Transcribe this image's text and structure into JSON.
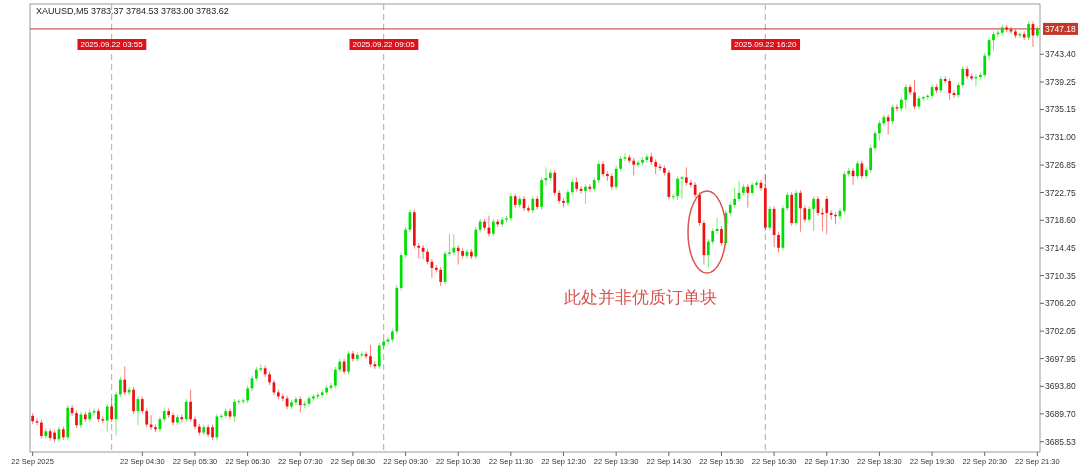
{
  "chart_data": {
    "type": "candlestick",
    "title": "XAUUSD,M5  3783.37 3784.53 3783.00 3783.62",
    "xlim": [
      "2025-09-22T02:22",
      "2025-09-22T21:33"
    ],
    "ylim": [
      3684.0,
      3750.9
    ],
    "xticks": [
      {
        "value": "2025-09-22T02:25",
        "label": "22 Sep 2025"
      },
      {
        "value": "2025-09-22T04:30",
        "label": "22 Sep 04:30"
      },
      {
        "value": "2025-09-22T05:30",
        "label": "22 Sep 05:30"
      },
      {
        "value": "2025-09-22T06:30",
        "label": "22 Sep 06:30"
      },
      {
        "value": "2025-09-22T07:30",
        "label": "22 Sep 07:30"
      },
      {
        "value": "2025-09-22T08:30",
        "label": "22 Sep 08:30"
      },
      {
        "value": "2025-09-22T09:30",
        "label": "22 Sep 09:30"
      },
      {
        "value": "2025-09-22T10:30",
        "label": "22 Sep 10:30"
      },
      {
        "value": "2025-09-22T11:30",
        "label": "22 Sep 11:30"
      },
      {
        "value": "2025-09-22T12:30",
        "label": "22 Sep 12:30"
      },
      {
        "value": "2025-09-22T13:30",
        "label": "22 Sep 13:30"
      },
      {
        "value": "2025-09-22T14:30",
        "label": "22 Sep 14:30"
      },
      {
        "value": "2025-09-22T15:30",
        "label": "22 Sep 15:30"
      },
      {
        "value": "2025-09-22T16:30",
        "label": "22 Sep 16:30"
      },
      {
        "value": "2025-09-22T17:30",
        "label": "22 Sep 17:30"
      },
      {
        "value": "2025-09-22T18:30",
        "label": "22 Sep 18:30"
      },
      {
        "value": "2025-09-22T19:30",
        "label": "22 Sep 19:30"
      },
      {
        "value": "2025-09-22T20:30",
        "label": "22 Sep 20:30"
      },
      {
        "value": "2025-09-22T21:30",
        "label": "22 Sep 21:30"
      }
    ],
    "yticks": [
      {
        "value": 3685.53,
        "label": "3685.53"
      },
      {
        "value": 3689.7,
        "label": "3689.70"
      },
      {
        "value": 3693.8,
        "label": "3693.80"
      },
      {
        "value": 3697.95,
        "label": "3697.95"
      },
      {
        "value": 3702.05,
        "label": "3702.05"
      },
      {
        "value": 3706.2,
        "label": "3706.20"
      },
      {
        "value": 3710.35,
        "label": "3710.35"
      },
      {
        "value": 3714.45,
        "label": "3714.45"
      },
      {
        "value": 3718.6,
        "label": "3718.60"
      },
      {
        "value": 3722.75,
        "label": "3722.75"
      },
      {
        "value": 3726.85,
        "label": "3726.85"
      },
      {
        "value": 3731.0,
        "label": "3731.00"
      },
      {
        "value": 3735.15,
        "label": "3735.15"
      },
      {
        "value": 3739.25,
        "label": "3739.25"
      },
      {
        "value": 3743.4,
        "label": "3743.40"
      }
    ],
    "ref_lines": [
      {
        "axis": "x",
        "value": "2025-09-22T03:55",
        "label": "2025.09.22 03:55",
        "color": "#dba7b0",
        "line_style": "dashed"
      },
      {
        "axis": "x",
        "value": "2025-09-22T09:05",
        "label": "2025.09.22 09:05",
        "color": "#dba7b0",
        "line_style": "dashed"
      },
      {
        "axis": "x",
        "value": "2025-09-22T16:20",
        "label": "2025.09.22 16:20",
        "color": "#dba7b0",
        "line_style": "dashed"
      },
      {
        "axis": "y",
        "value": 3747.18,
        "label": "3747.18",
        "color": "#c0392b",
        "line_style": "solid"
      }
    ],
    "annotations": [
      "此处并非优质订单块"
    ],
    "x": [
      "2025-09-22T02:25",
      "2025-09-22T02:30",
      "2025-09-22T02:35",
      "2025-09-22T02:40",
      "2025-09-22T02:45",
      "2025-09-22T02:50",
      "2025-09-22T02:55",
      "2025-09-22T03:00",
      "2025-09-22T03:05",
      "2025-09-22T03:10",
      "2025-09-22T03:15",
      "2025-09-22T03:20",
      "2025-09-22T03:25",
      "2025-09-22T03:30",
      "2025-09-22T03:35",
      "2025-09-22T03:40",
      "2025-09-22T03:45",
      "2025-09-22T03:50",
      "2025-09-22T03:55",
      "2025-09-22T04:00",
      "2025-09-22T04:05",
      "2025-09-22T04:10",
      "2025-09-22T04:15",
      "2025-09-22T04:20",
      "2025-09-22T04:25",
      "2025-09-22T04:30",
      "2025-09-22T04:35",
      "2025-09-22T04:40",
      "2025-09-22T04:45",
      "2025-09-22T04:50",
      "2025-09-22T04:55",
      "2025-09-22T05:00",
      "2025-09-22T05:05",
      "2025-09-22T05:10",
      "2025-09-22T05:15",
      "2025-09-22T05:20",
      "2025-09-22T05:25",
      "2025-09-22T05:30",
      "2025-09-22T05:35",
      "2025-09-22T05:40",
      "2025-09-22T05:45",
      "2025-09-22T05:50",
      "2025-09-22T05:55",
      "2025-09-22T06:00",
      "2025-09-22T06:05",
      "2025-09-22T06:10",
      "2025-09-22T06:15",
      "2025-09-22T06:20",
      "2025-09-22T06:25",
      "2025-09-22T06:30",
      "2025-09-22T06:35",
      "2025-09-22T06:40",
      "2025-09-22T06:45",
      "2025-09-22T06:50",
      "2025-09-22T06:55",
      "2025-09-22T07:00",
      "2025-09-22T07:05",
      "2025-09-22T07:10",
      "2025-09-22T07:15",
      "2025-09-22T07:20",
      "2025-09-22T07:25",
      "2025-09-22T07:30",
      "2025-09-22T07:35",
      "2025-09-22T07:40",
      "2025-09-22T07:45",
      "2025-09-22T07:50",
      "2025-09-22T07:55",
      "2025-09-22T08:00",
      "2025-09-22T08:05",
      "2025-09-22T08:10",
      "2025-09-22T08:15",
      "2025-09-22T08:20",
      "2025-09-22T08:25",
      "2025-09-22T08:30",
      "2025-09-22T08:35",
      "2025-09-22T08:40",
      "2025-09-22T08:45",
      "2025-09-22T08:50",
      "2025-09-22T08:55",
      "2025-09-22T09:00",
      "2025-09-22T09:05",
      "2025-09-22T09:10",
      "2025-09-22T09:15",
      "2025-09-22T09:20",
      "2025-09-22T09:25",
      "2025-09-22T09:30",
      "2025-09-22T09:35",
      "2025-09-22T09:40",
      "2025-09-22T09:45",
      "2025-09-22T09:50",
      "2025-09-22T09:55",
      "2025-09-22T10:00",
      "2025-09-22T10:05",
      "2025-09-22T10:10",
      "2025-09-22T10:15",
      "2025-09-22T10:20",
      "2025-09-22T10:25",
      "2025-09-22T10:30",
      "2025-09-22T10:35",
      "2025-09-22T10:40",
      "2025-09-22T10:45",
      "2025-09-22T10:50",
      "2025-09-22T10:55",
      "2025-09-22T11:00",
      "2025-09-22T11:05",
      "2025-09-22T11:10",
      "2025-09-22T11:15",
      "2025-09-22T11:20",
      "2025-09-22T11:25",
      "2025-09-22T11:30",
      "2025-09-22T11:35",
      "2025-09-22T11:40",
      "2025-09-22T11:45",
      "2025-09-22T11:50",
      "2025-09-22T11:55",
      "2025-09-22T12:00",
      "2025-09-22T12:05",
      "2025-09-22T12:10",
      "2025-09-22T12:15",
      "2025-09-22T12:20",
      "2025-09-22T12:25",
      "2025-09-22T12:30",
      "2025-09-22T12:35",
      "2025-09-22T12:40",
      "2025-09-22T12:45",
      "2025-09-22T12:50",
      "2025-09-22T12:55",
      "2025-09-22T13:00",
      "2025-09-22T13:05",
      "2025-09-22T13:10",
      "2025-09-22T13:15",
      "2025-09-22T13:20",
      "2025-09-22T13:25",
      "2025-09-22T13:30",
      "2025-09-22T13:35",
      "2025-09-22T13:40",
      "2025-09-22T13:45",
      "2025-09-22T13:50",
      "2025-09-22T13:55",
      "2025-09-22T14:00",
      "2025-09-22T14:05",
      "2025-09-22T14:10",
      "2025-09-22T14:15",
      "2025-09-22T14:20",
      "2025-09-22T14:25",
      "2025-09-22T14:30",
      "2025-09-22T14:35",
      "2025-09-22T14:40",
      "2025-09-22T14:45",
      "2025-09-22T14:50",
      "2025-09-22T14:55",
      "2025-09-22T15:00",
      "2025-09-22T15:05",
      "2025-09-22T15:10",
      "2025-09-22T15:15",
      "2025-09-22T15:20",
      "2025-09-22T15:25",
      "2025-09-22T15:30",
      "2025-09-22T15:35",
      "2025-09-22T15:40",
      "2025-09-22T15:45",
      "2025-09-22T15:50",
      "2025-09-22T15:55",
      "2025-09-22T16:00",
      "2025-09-22T16:05",
      "2025-09-22T16:10",
      "2025-09-22T16:15",
      "2025-09-22T16:20",
      "2025-09-22T16:25",
      "2025-09-22T16:30",
      "2025-09-22T16:35",
      "2025-09-22T16:40",
      "2025-09-22T16:45",
      "2025-09-22T16:50",
      "2025-09-22T16:55",
      "2025-09-22T17:00",
      "2025-09-22T17:05",
      "2025-09-22T17:10",
      "2025-09-22T17:15",
      "2025-09-22T17:20",
      "2025-09-22T17:25",
      "2025-09-22T17:30",
      "2025-09-22T17:35",
      "2025-09-22T17:40",
      "2025-09-22T17:45",
      "2025-09-22T17:50",
      "2025-09-22T17:55",
      "2025-09-22T18:00",
      "2025-09-22T18:05",
      "2025-09-22T18:10",
      "2025-09-22T18:15",
      "2025-09-22T18:20",
      "2025-09-22T18:25",
      "2025-09-22T18:30",
      "2025-09-22T18:35",
      "2025-09-22T18:40",
      "2025-09-22T18:45",
      "2025-09-22T18:50",
      "2025-09-22T18:55",
      "2025-09-22T19:00",
      "2025-09-22T19:05",
      "2025-09-22T19:10",
      "2025-09-22T19:15",
      "2025-09-22T19:20",
      "2025-09-22T19:25",
      "2025-09-22T19:30",
      "2025-09-22T19:35",
      "2025-09-22T19:40",
      "2025-09-22T19:45",
      "2025-09-22T19:50",
      "2025-09-22T19:55",
      "2025-09-22T20:00",
      "2025-09-22T20:05",
      "2025-09-22T20:10",
      "2025-09-22T20:15",
      "2025-09-22T20:20",
      "2025-09-22T20:25",
      "2025-09-22T20:30",
      "2025-09-22T20:35",
      "2025-09-22T20:40",
      "2025-09-22T20:45",
      "2025-09-22T20:50",
      "2025-09-22T20:55",
      "2025-09-22T21:00",
      "2025-09-22T21:05",
      "2025-09-22T21:10",
      "2025-09-22T21:15",
      "2025-09-22T21:20",
      "2025-09-22T21:25",
      "2025-09-22T21:30"
    ],
    "ohlc": [
      [
        3689.4,
        3689.8,
        3688.2,
        3688.6
      ],
      [
        3688.6,
        3689.0,
        3688.0,
        3688.4
      ],
      [
        3688.4,
        3688.8,
        3686.0,
        3686.4
      ],
      [
        3686.4,
        3687.5,
        3686.0,
        3687.1
      ],
      [
        3687.1,
        3687.5,
        3685.7,
        3686.1
      ],
      [
        3686.9,
        3687.3,
        3685.5,
        3685.9
      ],
      [
        3685.9,
        3687.8,
        3685.5,
        3687.4
      ],
      [
        3687.4,
        3687.8,
        3685.8,
        3686.2
      ],
      [
        3686.2,
        3691.0,
        3685.8,
        3690.6
      ],
      [
        3690.6,
        3691.0,
        3689.4,
        3689.8
      ],
      [
        3689.8,
        3690.2,
        3687.6,
        3688.0
      ],
      [
        3688.0,
        3690.0,
        3687.6,
        3689.6
      ],
      [
        3689.6,
        3690.0,
        3688.5,
        3688.9
      ],
      [
        3688.9,
        3690.3,
        3688.5,
        3689.9
      ],
      [
        3689.9,
        3690.5,
        3689.5,
        3690.1
      ],
      [
        3690.1,
        3690.5,
        3688.5,
        3688.9
      ],
      [
        3688.9,
        3689.3,
        3688.3,
        3688.7
      ],
      [
        3688.7,
        3691.2,
        3687.0,
        3690.8
      ],
      [
        3690.8,
        3692.0,
        3688.5,
        3688.9
      ],
      [
        3688.9,
        3693.0,
        3686.5,
        3692.6
      ],
      [
        3692.6,
        3695.2,
        3692.2,
        3694.8
      ],
      [
        3694.8,
        3696.8,
        3692.5,
        3692.9
      ],
      [
        3692.9,
        3693.7,
        3692.5,
        3693.3
      ],
      [
        3693.3,
        3693.7,
        3689.7,
        3690.1
      ],
      [
        3690.1,
        3692.3,
        3688.0,
        3691.9
      ],
      [
        3691.9,
        3692.3,
        3689.7,
        3690.1
      ],
      [
        3690.1,
        3690.5,
        3687.7,
        3688.1
      ],
      [
        3688.1,
        3689.5,
        3687.3,
        3687.7
      ],
      [
        3687.7,
        3688.1,
        3687.0,
        3687.4
      ],
      [
        3687.4,
        3689.3,
        3687.0,
        3688.9
      ],
      [
        3688.9,
        3690.5,
        3688.5,
        3690.1
      ],
      [
        3690.1,
        3690.5,
        3689.1,
        3689.5
      ],
      [
        3689.5,
        3689.9,
        3688.0,
        3688.4
      ],
      [
        3688.4,
        3689.6,
        3688.0,
        3689.2
      ],
      [
        3689.2,
        3689.6,
        3688.5,
        3688.9
      ],
      [
        3688.9,
        3691.9,
        3688.5,
        3691.5
      ],
      [
        3691.5,
        3693.3,
        3688.5,
        3688.9
      ],
      [
        3688.9,
        3689.3,
        3687.4,
        3687.8
      ],
      [
        3687.8,
        3688.2,
        3686.5,
        3686.9
      ],
      [
        3686.9,
        3688.1,
        3686.5,
        3687.7
      ],
      [
        3687.7,
        3688.1,
        3686.2,
        3686.6
      ],
      [
        3687.7,
        3688.1,
        3685.8,
        3686.2
      ],
      [
        3686.2,
        3689.7,
        3685.8,
        3689.3
      ],
      [
        3689.3,
        3689.7,
        3688.9,
        3689.4
      ],
      [
        3689.4,
        3690.5,
        3689.0,
        3690.1
      ],
      [
        3690.1,
        3690.5,
        3688.9,
        3689.3
      ],
      [
        3689.3,
        3691.9,
        3688.5,
        3691.5
      ],
      [
        3691.5,
        3691.9,
        3691.1,
        3691.6
      ],
      [
        3691.6,
        3692.0,
        3691.2,
        3691.7
      ],
      [
        3691.7,
        3693.9,
        3691.3,
        3693.5
      ],
      [
        3693.5,
        3695.4,
        3693.1,
        3695.0
      ],
      [
        3695.0,
        3696.7,
        3694.6,
        3696.3
      ],
      [
        3696.3,
        3697.1,
        3695.9,
        3696.5
      ],
      [
        3696.5,
        3696.9,
        3695.2,
        3695.6
      ],
      [
        3695.6,
        3696.0,
        3694.0,
        3694.4
      ],
      [
        3694.4,
        3694.8,
        3692.5,
        3692.9
      ],
      [
        3692.9,
        3693.3,
        3691.9,
        3692.3
      ],
      [
        3692.3,
        3692.7,
        3691.6,
        3692.0
      ],
      [
        3692.0,
        3692.4,
        3690.4,
        3690.8
      ],
      [
        3690.8,
        3691.8,
        3690.4,
        3691.4
      ],
      [
        3691.4,
        3692.3,
        3691.0,
        3691.9
      ],
      [
        3691.9,
        3692.3,
        3689.9,
        3691.0
      ],
      [
        3691.0,
        3691.6,
        3690.6,
        3691.2
      ],
      [
        3691.2,
        3692.4,
        3690.8,
        3692.0
      ],
      [
        3692.0,
        3692.6,
        3691.6,
        3692.3
      ],
      [
        3692.3,
        3692.9,
        3691.9,
        3692.5
      ],
      [
        3692.5,
        3693.3,
        3692.1,
        3692.9
      ],
      [
        3692.9,
        3694.0,
        3692.5,
        3693.6
      ],
      [
        3693.6,
        3694.3,
        3693.2,
        3693.9
      ],
      [
        3693.9,
        3696.7,
        3693.5,
        3696.3
      ],
      [
        3696.3,
        3697.9,
        3695.9,
        3697.5
      ],
      [
        3697.5,
        3697.9,
        3695.6,
        3696.0
      ],
      [
        3696.0,
        3699.1,
        3695.6,
        3698.7
      ],
      [
        3698.7,
        3699.1,
        3697.5,
        3697.9
      ],
      [
        3697.9,
        3698.9,
        3697.5,
        3698.5
      ],
      [
        3698.5,
        3699.0,
        3698.1,
        3698.6
      ],
      [
        3698.6,
        3699.0,
        3697.9,
        3698.3
      ],
      [
        3698.3,
        3700.0,
        3696.7,
        3697.1
      ],
      [
        3697.1,
        3697.5,
        3696.4,
        3696.8
      ],
      [
        3696.8,
        3700.3,
        3696.4,
        3699.9
      ],
      [
        3699.9,
        3700.9,
        3699.5,
        3700.5
      ],
      [
        3700.5,
        3701.1,
        3700.1,
        3700.8
      ],
      [
        3700.8,
        3702.4,
        3700.4,
        3702.0
      ],
      [
        3702.0,
        3708.9,
        3701.6,
        3708.5
      ],
      [
        3708.5,
        3713.8,
        3708.1,
        3713.4
      ],
      [
        3713.4,
        3717.6,
        3713.0,
        3717.2
      ],
      [
        3717.2,
        3720.2,
        3716.8,
        3719.8
      ],
      [
        3719.8,
        3720.2,
        3714.4,
        3714.8
      ],
      [
        3714.8,
        3715.2,
        3712.9,
        3714.5
      ],
      [
        3714.5,
        3714.9,
        3712.8,
        3713.9
      ],
      [
        3713.9,
        3714.3,
        3712.0,
        3712.4
      ],
      [
        3712.4,
        3712.8,
        3710.0,
        3711.5
      ],
      [
        3711.5,
        3711.9,
        3710.8,
        3711.2
      ],
      [
        3711.2,
        3711.6,
        3708.8,
        3709.4
      ],
      [
        3709.4,
        3714.0,
        3709.0,
        3713.6
      ],
      [
        3713.6,
        3716.6,
        3713.2,
        3713.8
      ],
      [
        3713.8,
        3716.5,
        3713.4,
        3714.5
      ],
      [
        3714.5,
        3714.9,
        3712.0,
        3714.0
      ],
      [
        3714.0,
        3714.4,
        3712.9,
        3713.3
      ],
      [
        3713.3,
        3714.3,
        3712.9,
        3713.9
      ],
      [
        3713.9,
        3714.3,
        3712.8,
        3713.2
      ],
      [
        3713.2,
        3717.6,
        3712.8,
        3717.2
      ],
      [
        3717.2,
        3718.8,
        3716.8,
        3718.4
      ],
      [
        3718.4,
        3718.8,
        3717.1,
        3717.5
      ],
      [
        3717.5,
        3719.3,
        3716.2,
        3716.6
      ],
      [
        3716.6,
        3718.8,
        3716.2,
        3718.4
      ],
      [
        3718.4,
        3718.8,
        3717.6,
        3718.0
      ],
      [
        3718.0,
        3719.1,
        3717.6,
        3718.7
      ],
      [
        3718.7,
        3719.3,
        3718.3,
        3718.9
      ],
      [
        3718.9,
        3722.6,
        3718.5,
        3722.2
      ],
      [
        3722.2,
        3722.6,
        3720.5,
        3720.9
      ],
      [
        3720.9,
        3722.2,
        3720.5,
        3721.8
      ],
      [
        3721.8,
        3722.2,
        3720.0,
        3720.4
      ],
      [
        3720.4,
        3720.8,
        3719.8,
        3720.1
      ],
      [
        3720.1,
        3722.2,
        3719.7,
        3721.8
      ],
      [
        3721.8,
        3722.2,
        3720.2,
        3720.6
      ],
      [
        3720.6,
        3725.0,
        3720.2,
        3724.6
      ],
      [
        3724.6,
        3726.5,
        3723.8,
        3724.9
      ],
      [
        3724.9,
        3726.1,
        3724.5,
        3725.7
      ],
      [
        3725.7,
        3726.1,
        3722.3,
        3722.7
      ],
      [
        3722.7,
        3723.1,
        3721.1,
        3721.5
      ],
      [
        3721.5,
        3721.9,
        3720.5,
        3721.2
      ],
      [
        3721.2,
        3723.2,
        3720.8,
        3722.8
      ],
      [
        3722.8,
        3724.7,
        3722.4,
        3724.3
      ],
      [
        3724.3,
        3725.0,
        3722.9,
        3723.3
      ],
      [
        3723.3,
        3723.7,
        3722.6,
        3723.0
      ],
      [
        3723.0,
        3724.0,
        3721.0,
        3723.6
      ],
      [
        3723.6,
        3724.0,
        3722.9,
        3723.3
      ],
      [
        3723.3,
        3725.0,
        3722.9,
        3724.6
      ],
      [
        3724.6,
        3727.4,
        3724.2,
        3727.0
      ],
      [
        3727.0,
        3727.4,
        3725.1,
        3725.5
      ],
      [
        3725.5,
        3725.9,
        3724.5,
        3725.2
      ],
      [
        3725.2,
        3725.6,
        3723.2,
        3723.6
      ],
      [
        3723.6,
        3726.7,
        3723.2,
        3726.3
      ],
      [
        3726.3,
        3728.2,
        3725.9,
        3727.8
      ],
      [
        3727.8,
        3728.6,
        3727.4,
        3728.0
      ],
      [
        3728.0,
        3728.4,
        3727.1,
        3727.5
      ],
      [
        3727.5,
        3727.9,
        3725.3,
        3726.9
      ],
      [
        3726.9,
        3727.6,
        3726.5,
        3727.2
      ],
      [
        3727.2,
        3728.0,
        3726.8,
        3727.6
      ],
      [
        3727.6,
        3728.5,
        3727.2,
        3728.1
      ],
      [
        3728.1,
        3728.7,
        3726.9,
        3727.3
      ],
      [
        3727.3,
        3727.7,
        3725.5,
        3726.6
      ],
      [
        3726.6,
        3727.0,
        3726.0,
        3726.4
      ],
      [
        3726.4,
        3726.8,
        3725.3,
        3725.7
      ],
      [
        3725.7,
        3726.1,
        3721.7,
        3722.1
      ],
      [
        3722.1,
        3722.5,
        3721.7,
        3722.2
      ],
      [
        3722.2,
        3725.2,
        3721.6,
        3724.8
      ],
      [
        3724.8,
        3725.2,
        3721.8,
        3725.0
      ],
      [
        3725.0,
        3726.5,
        3723.8,
        3724.2
      ],
      [
        3724.2,
        3724.6,
        3723.5,
        3723.9
      ],
      [
        3723.9,
        3724.3,
        3722.0,
        3722.4
      ],
      [
        3722.4,
        3722.8,
        3717.8,
        3718.2
      ],
      [
        3718.2,
        3718.6,
        3712.0,
        3713.4
      ],
      [
        3713.4,
        3715.8,
        3711.5,
        3715.4
      ],
      [
        3715.4,
        3717.4,
        3715.0,
        3717.0
      ],
      [
        3717.0,
        3719.0,
        3716.6,
        3717.3
      ],
      [
        3717.3,
        3717.7,
        3714.8,
        3715.2
      ],
      [
        3715.2,
        3720.1,
        3714.8,
        3719.7
      ],
      [
        3719.7,
        3721.3,
        3719.3,
        3720.9
      ],
      [
        3720.9,
        3723.5,
        3720.5,
        3721.8
      ],
      [
        3721.8,
        3724.5,
        3721.4,
        3722.7
      ],
      [
        3722.7,
        3724.0,
        3722.3,
        3723.6
      ],
      [
        3723.6,
        3724.0,
        3720.5,
        3722.7
      ],
      [
        3722.7,
        3724.3,
        3722.3,
        3723.9
      ],
      [
        3723.9,
        3724.5,
        3723.5,
        3724.2
      ],
      [
        3724.2,
        3724.6,
        3723.0,
        3723.4
      ],
      [
        3723.4,
        3725.5,
        3717.1,
        3717.5
      ],
      [
        3717.5,
        3720.7,
        3717.1,
        3720.3
      ],
      [
        3720.3,
        3720.7,
        3714.6,
        3716.4
      ],
      [
        3716.4,
        3716.8,
        3713.8,
        3714.5
      ],
      [
        3714.5,
        3720.8,
        3714.1,
        3720.4
      ],
      [
        3720.4,
        3722.8,
        3720.0,
        3722.4
      ],
      [
        3722.4,
        3722.8,
        3717.8,
        3718.2
      ],
      [
        3718.2,
        3723.1,
        3717.8,
        3722.7
      ],
      [
        3722.7,
        3723.1,
        3716.9,
        3720.4
      ],
      [
        3720.4,
        3720.8,
        3718.3,
        3718.7
      ],
      [
        3718.7,
        3720.7,
        3718.3,
        3720.3
      ],
      [
        3720.3,
        3722.2,
        3717.0,
        3721.8
      ],
      [
        3721.8,
        3722.2,
        3719.3,
        3719.7
      ],
      [
        3719.7,
        3720.5,
        3717.0,
        3719.5
      ],
      [
        3721.8,
        3722.2,
        3716.5,
        3719.7
      ],
      [
        3719.7,
        3720.1,
        3718.7,
        3719.4
      ],
      [
        3719.4,
        3719.8,
        3718.0,
        3719.2
      ],
      [
        3719.2,
        3720.4,
        3718.8,
        3720.0
      ],
      [
        3720.0,
        3725.9,
        3719.6,
        3725.5
      ],
      [
        3725.5,
        3726.4,
        3725.1,
        3726.0
      ],
      [
        3726.0,
        3726.4,
        3723.9,
        3725.2
      ],
      [
        3725.2,
        3727.5,
        3724.8,
        3727.1
      ],
      [
        3727.1,
        3727.5,
        3724.8,
        3725.2
      ],
      [
        3725.2,
        3726.5,
        3724.8,
        3726.1
      ],
      [
        3726.1,
        3729.8,
        3725.7,
        3729.4
      ],
      [
        3729.4,
        3732.0,
        3729.0,
        3731.6
      ],
      [
        3731.6,
        3733.5,
        3730.5,
        3733.1
      ],
      [
        3733.1,
        3734.4,
        3732.7,
        3734.0
      ],
      [
        3734.0,
        3734.4,
        3731.4,
        3733.4
      ],
      [
        3733.4,
        3735.9,
        3733.0,
        3735.5
      ],
      [
        3735.5,
        3735.9,
        3734.9,
        3735.3
      ],
      [
        3735.3,
        3737.0,
        3734.9,
        3736.6
      ],
      [
        3736.6,
        3738.9,
        3735.2,
        3738.5
      ],
      [
        3738.5,
        3738.9,
        3737.3,
        3737.7
      ],
      [
        3737.7,
        3739.5,
        3735.2,
        3735.6
      ],
      [
        3735.6,
        3737.2,
        3735.2,
        3736.8
      ],
      [
        3736.8,
        3737.2,
        3736.4,
        3737.0
      ],
      [
        3737.0,
        3737.4,
        3736.6,
        3737.2
      ],
      [
        3737.2,
        3738.9,
        3736.8,
        3738.5
      ],
      [
        3738.5,
        3738.9,
        3737.6,
        3738.0
      ],
      [
        3738.0,
        3740.1,
        3737.6,
        3739.7
      ],
      [
        3739.7,
        3740.1,
        3739.1,
        3739.4
      ],
      [
        3739.4,
        3739.8,
        3736.6,
        3737.6
      ],
      [
        3737.6,
        3738.0,
        3736.9,
        3737.3
      ],
      [
        3737.3,
        3739.2,
        3736.9,
        3738.8
      ],
      [
        3738.8,
        3741.6,
        3738.4,
        3741.2
      ],
      [
        3741.2,
        3741.6,
        3739.7,
        3740.1
      ],
      [
        3740.1,
        3740.5,
        3739.5,
        3739.8
      ],
      [
        3739.8,
        3740.4,
        3738.6,
        3740.0
      ],
      [
        3740.0,
        3740.7,
        3739.6,
        3740.3
      ],
      [
        3740.3,
        3743.6,
        3739.9,
        3743.2
      ],
      [
        3743.2,
        3745.9,
        3742.5,
        3745.5
      ],
      [
        3745.5,
        3746.8,
        3744.0,
        3746.4
      ],
      [
        3746.4,
        3747.0,
        3746.0,
        3746.6
      ],
      [
        3746.6,
        3747.8,
        3746.2,
        3747.4
      ],
      [
        3747.4,
        3747.8,
        3746.7,
        3747.1
      ],
      [
        3747.1,
        3747.5,
        3746.4,
        3746.8
      ],
      [
        3746.8,
        3747.2,
        3745.8,
        3746.2
      ],
      [
        3746.2,
        3746.6,
        3745.8,
        3746.4
      ],
      [
        3746.4,
        3746.8,
        3745.5,
        3745.9
      ],
      [
        3745.9,
        3748.3,
        3745.5,
        3747.9
      ],
      [
        3747.9,
        3748.3,
        3744.5,
        3746.2
      ],
      [
        3746.2,
        3747.6,
        3745.8,
        3747.2
      ]
    ],
    "colors": [
      "#ee1111",
      "#ee1111",
      "#ee1111",
      "#00dd00",
      "#ee1111",
      "#ee1111",
      "#00dd00",
      "#ee1111",
      "#00dd00",
      "#ee1111",
      "#ee1111",
      "#00dd00",
      "#ee1111",
      "#00dd00",
      "#00dd00",
      "#ee1111",
      "#ee1111",
      "#00dd00",
      "#ee1111",
      "#00dd00",
      "#00dd00",
      "#ee1111",
      "#00dd00",
      "#ee1111",
      "#00dd00",
      "#ee1111",
      "#ee1111",
      "#ee1111",
      "#ee1111",
      "#00dd00",
      "#00dd00",
      "#ee1111",
      "#ee1111",
      "#00dd00",
      "#ee1111",
      "#00dd00",
      "#ee1111",
      "#ee1111",
      "#ee1111",
      "#00dd00",
      "#ee1111",
      "#ee1111",
      "#00dd00",
      "#00dd00",
      "#00dd00",
      "#ee1111",
      "#00dd00",
      "#00dd00",
      "#00dd00",
      "#00dd00",
      "#00dd00",
      "#00dd00",
      "#00dd00",
      "#ee1111",
      "#ee1111",
      "#ee1111",
      "#ee1111",
      "#ee1111",
      "#ee1111",
      "#00dd00",
      "#00dd00",
      "#ee1111",
      "#00dd00",
      "#00dd00",
      "#00dd00",
      "#00dd00",
      "#00dd00",
      "#00dd00",
      "#00dd00",
      "#00dd00",
      "#00dd00",
      "#ee1111",
      "#00dd00",
      "#ee1111",
      "#00dd00",
      "#00dd00",
      "#ee1111",
      "#ee1111",
      "#ee1111",
      "#00dd00",
      "#00dd00",
      "#00dd00",
      "#00dd00",
      "#00dd00",
      "#00dd00",
      "#00dd00",
      "#00dd00",
      "#ee1111",
      "#ee1111",
      "#ee1111",
      "#ee1111",
      "#ee1111",
      "#ee1111",
      "#ee1111",
      "#00dd00",
      "#00dd00",
      "#00dd00",
      "#ee1111",
      "#ee1111",
      "#00dd00",
      "#ee1111",
      "#00dd00",
      "#00dd00",
      "#ee1111",
      "#ee1111",
      "#00dd00",
      "#ee1111",
      "#00dd00",
      "#00dd00",
      "#00dd00",
      "#ee1111",
      "#00dd00",
      "#ee1111",
      "#ee1111",
      "#00dd00",
      "#ee1111",
      "#00dd00",
      "#00dd00",
      "#00dd00",
      "#ee1111",
      "#ee1111",
      "#ee1111",
      "#00dd00",
      "#00dd00",
      "#ee1111",
      "#ee1111",
      "#00dd00",
      "#ee1111",
      "#00dd00",
      "#00dd00",
      "#ee1111",
      "#ee1111",
      "#ee1111",
      "#00dd00",
      "#00dd00",
      "#00dd00",
      "#ee1111",
      "#ee1111",
      "#00dd00",
      "#00dd00",
      "#00dd00",
      "#ee1111",
      "#ee1111",
      "#ee1111",
      "#ee1111",
      "#ee1111",
      "#00dd00",
      "#00dd00",
      "#00dd00",
      "#ee1111",
      "#ee1111",
      "#ee1111",
      "#ee1111",
      "#ee1111",
      "#00dd00",
      "#00dd00",
      "#00dd00",
      "#ee1111",
      "#00dd00",
      "#00dd00",
      "#00dd00",
      "#00dd00",
      "#00dd00",
      "#ee1111",
      "#00dd00",
      "#00dd00",
      "#ee1111",
      "#ee1111",
      "#00dd00",
      "#ee1111",
      "#ee1111",
      "#00dd00",
      "#00dd00",
      "#ee1111",
      "#00dd00",
      "#ee1111",
      "#ee1111",
      "#00dd00",
      "#00dd00",
      "#ee1111",
      "#ee1111",
      "#ee1111",
      "#ee1111",
      "#ee1111",
      "#00dd00",
      "#00dd00",
      "#00dd00",
      "#ee1111",
      "#00dd00",
      "#ee1111",
      "#00dd00",
      "#00dd00",
      "#00dd00",
      "#00dd00",
      "#00dd00",
      "#ee1111",
      "#00dd00",
      "#ee1111",
      "#00dd00",
      "#00dd00",
      "#ee1111",
      "#ee1111",
      "#00dd00",
      "#00dd00",
      "#00dd00",
      "#00dd00",
      "#ee1111",
      "#00dd00",
      "#ee1111",
      "#ee1111",
      "#ee1111",
      "#00dd00",
      "#00dd00",
      "#ee1111",
      "#ee1111",
      "#00dd00",
      "#00dd00",
      "#00dd00",
      "#00dd00",
      "#00dd00",
      "#00dd00",
      "#00dd00",
      "#ee1111",
      "#ee1111",
      "#ee1111",
      "#00dd00",
      "#ee1111",
      "#00dd00",
      "#ee1111",
      "#00dd00"
    ]
  }
}
